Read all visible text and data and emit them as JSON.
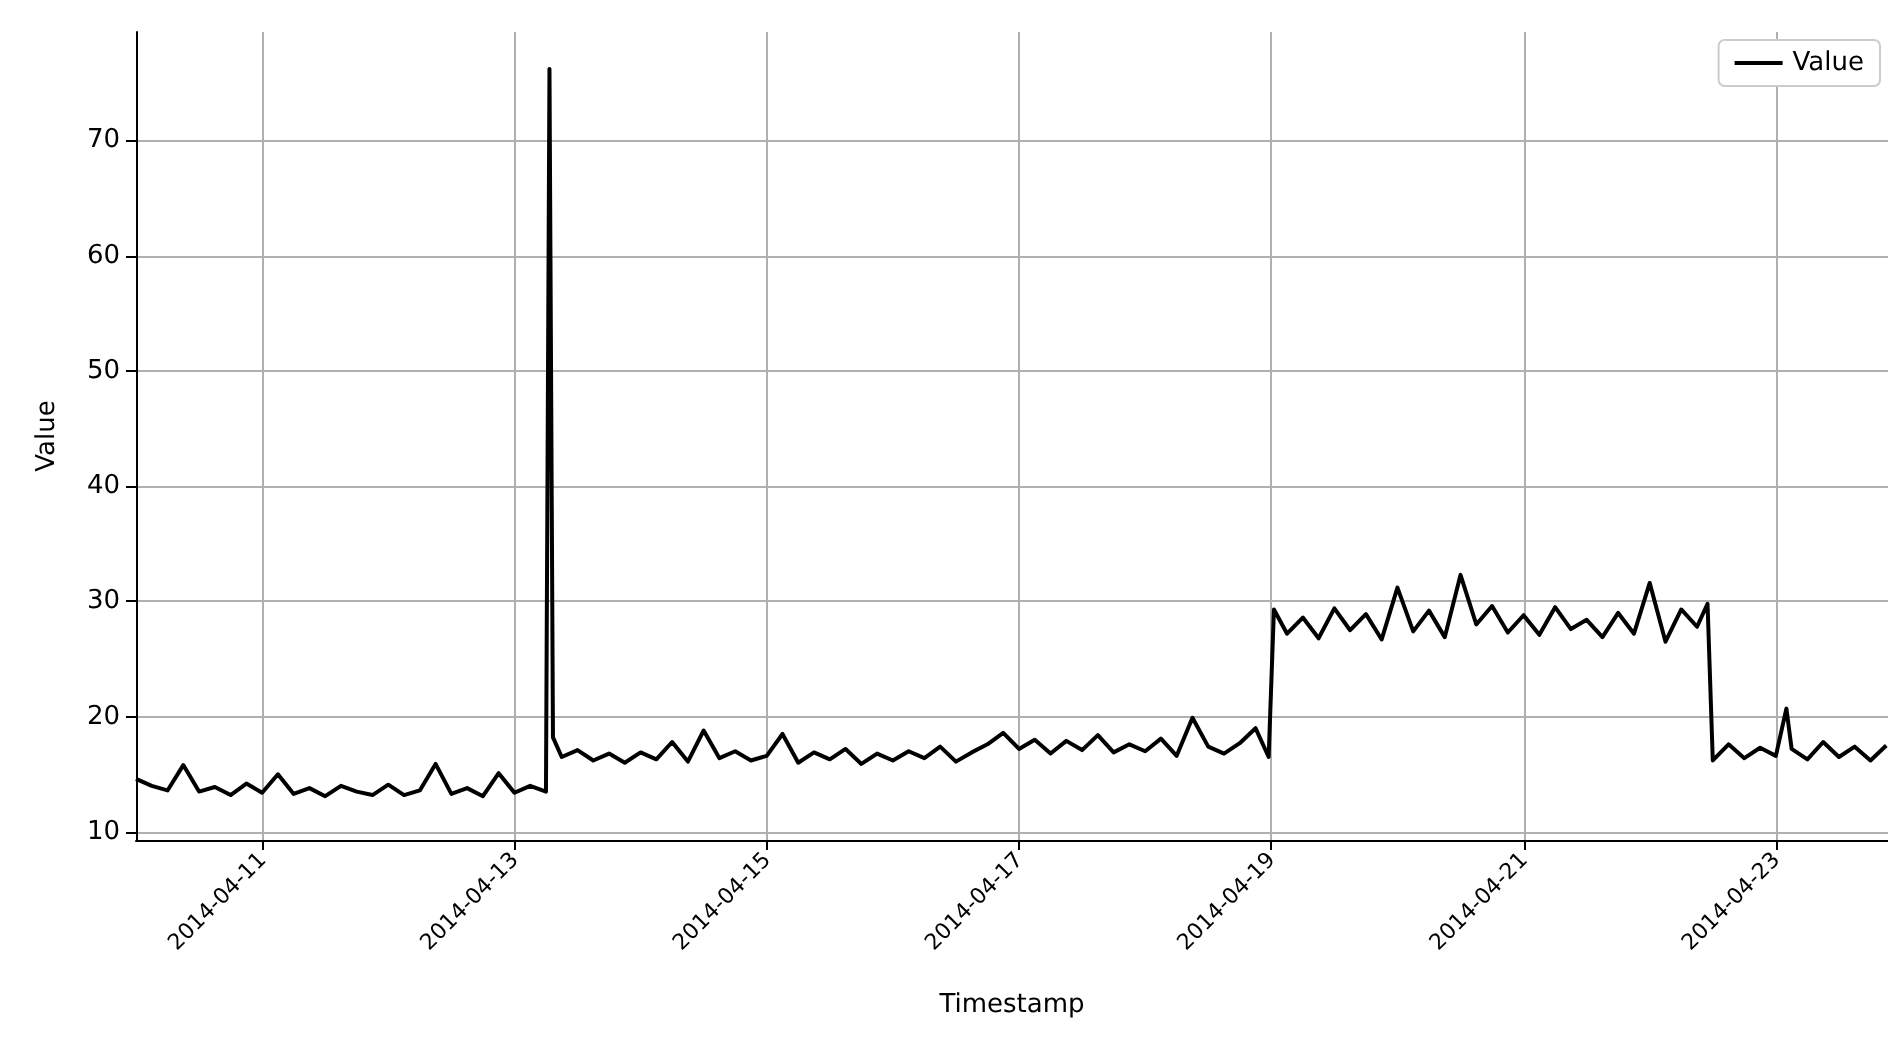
{
  "chart_data": {
    "type": "line",
    "xlabel": "Timestamp",
    "ylabel": "Value",
    "x": [
      "2014-04-10T00:00",
      "2014-04-10T03:00",
      "2014-04-10T06:00",
      "2014-04-10T09:00",
      "2014-04-10T12:00",
      "2014-04-10T15:00",
      "2014-04-10T18:00",
      "2014-04-10T21:00",
      "2014-04-11T00:00",
      "2014-04-11T03:00",
      "2014-04-11T06:00",
      "2014-04-11T09:00",
      "2014-04-11T12:00",
      "2014-04-11T15:00",
      "2014-04-11T18:00",
      "2014-04-11T21:00",
      "2014-04-12T00:00",
      "2014-04-12T03:00",
      "2014-04-12T06:00",
      "2014-04-12T09:00",
      "2014-04-12T12:00",
      "2014-04-12T15:00",
      "2014-04-12T18:00",
      "2014-04-12T21:00",
      "2014-04-13T00:00",
      "2014-04-13T03:00",
      "2014-04-13T06:00",
      "2014-04-13T06:40",
      "2014-04-13T07:20",
      "2014-04-13T09:00",
      "2014-04-13T12:00",
      "2014-04-13T15:00",
      "2014-04-13T18:00",
      "2014-04-13T21:00",
      "2014-04-14T00:00",
      "2014-04-14T03:00",
      "2014-04-14T06:00",
      "2014-04-14T09:00",
      "2014-04-14T12:00",
      "2014-04-14T15:00",
      "2014-04-14T18:00",
      "2014-04-14T21:00",
      "2014-04-15T00:00",
      "2014-04-15T03:00",
      "2014-04-15T06:00",
      "2014-04-15T09:00",
      "2014-04-15T12:00",
      "2014-04-15T15:00",
      "2014-04-15T18:00",
      "2014-04-15T21:00",
      "2014-04-16T00:00",
      "2014-04-16T03:00",
      "2014-04-16T06:00",
      "2014-04-16T09:00",
      "2014-04-16T12:00",
      "2014-04-16T15:00",
      "2014-04-16T18:00",
      "2014-04-16T21:00",
      "2014-04-17T00:00",
      "2014-04-17T03:00",
      "2014-04-17T06:00",
      "2014-04-17T09:00",
      "2014-04-17T12:00",
      "2014-04-17T15:00",
      "2014-04-17T18:00",
      "2014-04-17T21:00",
      "2014-04-18T00:00",
      "2014-04-18T03:00",
      "2014-04-18T06:00",
      "2014-04-18T09:00",
      "2014-04-18T12:00",
      "2014-04-18T15:00",
      "2014-04-18T18:00",
      "2014-04-18T21:00",
      "2014-04-18T23:30",
      "2014-04-19T00:30",
      "2014-04-19T03:00",
      "2014-04-19T06:00",
      "2014-04-19T09:00",
      "2014-04-19T12:00",
      "2014-04-19T15:00",
      "2014-04-19T18:00",
      "2014-04-19T21:00",
      "2014-04-20T00:00",
      "2014-04-20T03:00",
      "2014-04-20T06:00",
      "2014-04-20T09:00",
      "2014-04-20T12:00",
      "2014-04-20T15:00",
      "2014-04-20T18:00",
      "2014-04-20T21:00",
      "2014-04-21T00:00",
      "2014-04-21T03:00",
      "2014-04-21T06:00",
      "2014-04-21T09:00",
      "2014-04-21T12:00",
      "2014-04-21T15:00",
      "2014-04-21T18:00",
      "2014-04-21T21:00",
      "2014-04-22T00:00",
      "2014-04-22T03:00",
      "2014-04-22T06:00",
      "2014-04-22T09:00",
      "2014-04-22T11:00",
      "2014-04-22T12:00",
      "2014-04-22T15:00",
      "2014-04-22T18:00",
      "2014-04-22T21:00",
      "2014-04-23T00:00",
      "2014-04-23T02:00",
      "2014-04-23T03:00",
      "2014-04-23T06:00",
      "2014-04-23T09:00",
      "2014-04-23T12:00",
      "2014-04-23T15:00",
      "2014-04-23T18:00",
      "2014-04-23T21:00"
    ],
    "series": [
      {
        "name": "Value",
        "color": "#000000",
        "values": [
          14.6,
          14.0,
          13.6,
          15.8,
          13.5,
          13.9,
          13.2,
          14.2,
          13.4,
          15.0,
          13.3,
          13.8,
          13.1,
          14.0,
          13.5,
          13.2,
          14.1,
          13.2,
          13.6,
          15.9,
          13.3,
          13.8,
          13.1,
          15.1,
          13.4,
          14.0,
          13.5,
          76.2,
          18.2,
          16.5,
          17.1,
          16.2,
          16.8,
          16.0,
          16.9,
          16.3,
          17.8,
          16.1,
          18.8,
          16.4,
          17.0,
          16.2,
          16.6,
          18.5,
          16.0,
          16.9,
          16.3,
          17.2,
          15.9,
          16.8,
          16.2,
          17.0,
          16.4,
          17.4,
          16.1,
          16.9,
          17.6,
          18.6,
          17.2,
          18.0,
          16.8,
          17.9,
          17.1,
          18.4,
          16.9,
          17.6,
          17.0,
          18.1,
          16.6,
          19.9,
          17.4,
          16.8,
          17.7,
          19.0,
          16.5,
          29.3,
          27.2,
          28.6,
          26.8,
          29.4,
          27.5,
          28.9,
          26.7,
          31.2,
          27.4,
          29.2,
          26.9,
          32.3,
          28.0,
          29.6,
          27.3,
          28.8,
          27.1,
          29.5,
          27.6,
          28.4,
          26.9,
          29.0,
          27.2,
          31.6,
          26.5,
          29.3,
          27.8,
          29.8,
          16.2,
          17.6,
          16.4,
          17.3,
          16.6,
          20.7,
          17.2,
          16.3,
          17.8,
          16.5,
          17.4,
          16.2,
          17.5
        ]
      }
    ],
    "xlim": [
      "2014-04-10T00:00",
      "2014-04-23T21:20"
    ],
    "xticks": [
      "2014-04-11",
      "2014-04-13",
      "2014-04-15",
      "2014-04-17",
      "2014-04-19",
      "2014-04-21",
      "2014-04-23"
    ],
    "ylim": [
      9.3,
      79.4
    ],
    "yticks": [
      10,
      20,
      30,
      40,
      50,
      60,
      70
    ],
    "grid": true,
    "legend": "top right",
    "marker": "none",
    "line_style": "solid"
  }
}
